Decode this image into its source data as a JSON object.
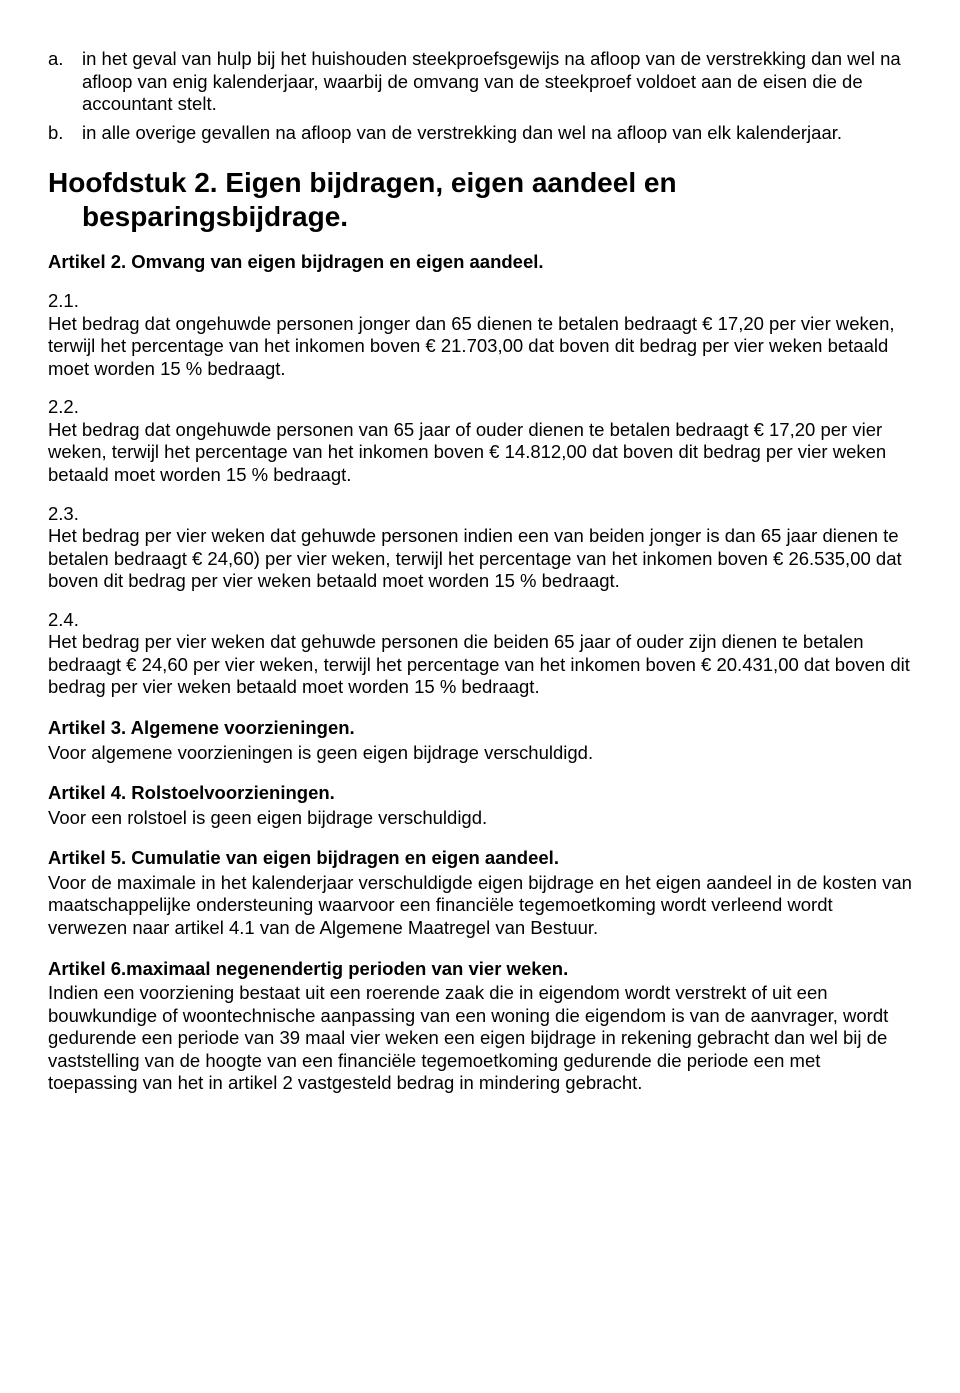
{
  "listA": {
    "marker": "a.",
    "text": "in het geval van hulp bij het huishouden steekproefsgewijs na afloop van de verstrekking dan wel na afloop van enig kalenderjaar, waarbij de omvang van de steekproef voldoet aan de eisen die de accountant stelt."
  },
  "listB": {
    "marker": "b.",
    "text": "in alle overige gevallen na afloop van de verstrekking dan wel na afloop van elk kalenderjaar."
  },
  "chapterTitle1": "Hoofdstuk 2. Eigen bijdragen, eigen aandeel en",
  "chapterTitle2": "besparingsbijdrage.",
  "art2": {
    "title": "Artikel 2. Omvang van eigen bijdragen en eigen aandeel.",
    "p1num": "2.1.",
    "p1": "Het bedrag dat ongehuwde personen jonger dan 65 dienen te betalen bedraagt € 17,20 per vier weken, terwijl het percentage van het inkomen boven € 21.703,00 dat boven dit bedrag per vier weken betaald moet worden 15 % bedraagt.",
    "p2num": "2.2.",
    "p2": "Het bedrag dat ongehuwde personen van 65 jaar of ouder dienen te betalen bedraagt € 17,20 per vier weken, terwijl het percentage van het inkomen boven € 14.812,00 dat boven dit bedrag per vier weken betaald moet worden 15 % bedraagt.",
    "p3num": "2.3.",
    "p3": "Het bedrag per vier weken dat gehuwde personen indien een van beiden jonger is dan 65 jaar dienen te betalen bedraagt € 24,60) per vier weken, terwijl het percentage van het inkomen boven € 26.535,00 dat boven dit bedrag per vier weken betaald moet worden 15 % bedraagt.",
    "p4num": "2.4.",
    "p4": "Het bedrag per vier weken dat gehuwde personen die beiden 65 jaar of ouder zijn dienen te betalen bedraagt € 24,60 per vier weken, terwijl het percentage van het inkomen boven € 20.431,00 dat boven dit bedrag per vier weken betaald moet worden 15 % bedraagt."
  },
  "art3": {
    "title": "Artikel 3. Algemene voorzieningen.",
    "body": "Voor algemene voorzieningen is geen eigen bijdrage verschuldigd."
  },
  "art4": {
    "title": "Artikel 4. Rolstoelvoorzieningen.",
    "body": "Voor een rolstoel is geen eigen bijdrage verschuldigd."
  },
  "art5": {
    "title": "Artikel 5. Cumulatie van eigen bijdragen en eigen aandeel.",
    "body": "Voor de maximale in het kalenderjaar verschuldigde eigen bijdrage en het eigen aandeel in de kosten van maatschappelijke ondersteuning waarvoor een financiële tegemoetkoming wordt verleend wordt verwezen naar artikel 4.1 van de Algemene Maatregel van Bestuur."
  },
  "art6": {
    "title": "Artikel 6.maximaal negenendertig perioden van vier weken.",
    "body": "Indien een voorziening bestaat uit een roerende zaak die in eigendom wordt verstrekt of uit een bouwkundige of woontechnische aanpassing van een woning die eigendom is van de aanvrager, wordt gedurende een periode van 39 maal vier weken een eigen bijdrage in rekening gebracht dan wel  bij de vaststelling van de hoogte van een financiële tegemoetkoming gedurende die periode een met toepassing van het in artikel 2 vastgesteld bedrag in mindering gebracht."
  }
}
